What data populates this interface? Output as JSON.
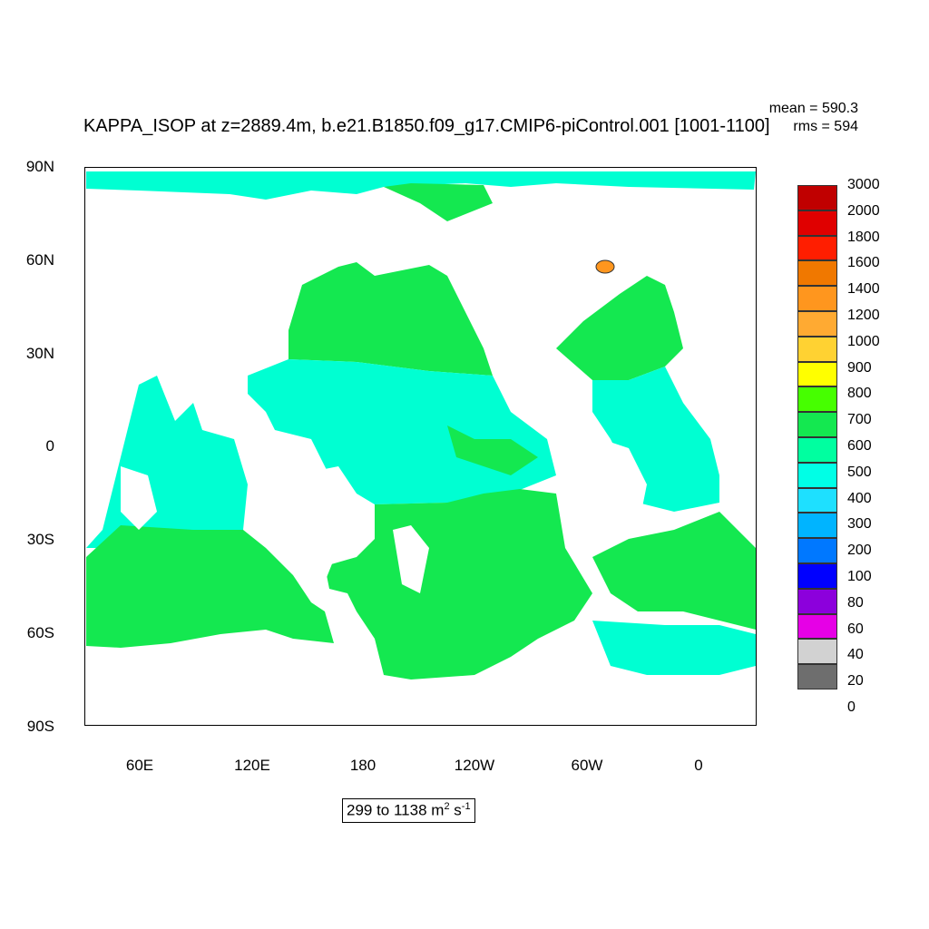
{
  "title": "KAPPA_ISOP at z=2889.4m, b.e21.B1850.f09_g17.CMIP6-piControl.001 [1001-1100]",
  "stats": {
    "mean": "mean = 590.3",
    "rms": "rms = 594"
  },
  "axes": {
    "lat_labels": [
      "90N",
      "60N",
      "30N",
      "0",
      "30S",
      "60S",
      "90S"
    ],
    "lon_labels": [
      "60E",
      "120E",
      "180",
      "120W",
      "60W",
      "0"
    ]
  },
  "range_text": {
    "prefix": "299 to 1138 m",
    "exp1": "2",
    "mid": " s",
    "exp2": "-1"
  },
  "legend": {
    "labels": [
      "3000",
      "2000",
      "1800",
      "1600",
      "1400",
      "1200",
      "1000",
      "900",
      "800",
      "700",
      "600",
      "500",
      "400",
      "300",
      "200",
      "100",
      "80",
      "60",
      "40",
      "20",
      "0"
    ],
    "colors": [
      "#c00000",
      "#e00000",
      "#ff1e00",
      "#f07800",
      "#ff961e",
      "#ffaa32",
      "#ffd232",
      "#ffff00",
      "#46ff00",
      "#14e850",
      "#00ffa0",
      "#00ffe6",
      "#1ee0ff",
      "#00b4ff",
      "#0078ff",
      "#0000ff",
      "#8c00dc",
      "#e600e6",
      "#d2d2d2",
      "#6e6e6e"
    ]
  },
  "colors": {
    "green": "#14e850",
    "cyan": "#00ffd2",
    "land": "#ffffff"
  }
}
